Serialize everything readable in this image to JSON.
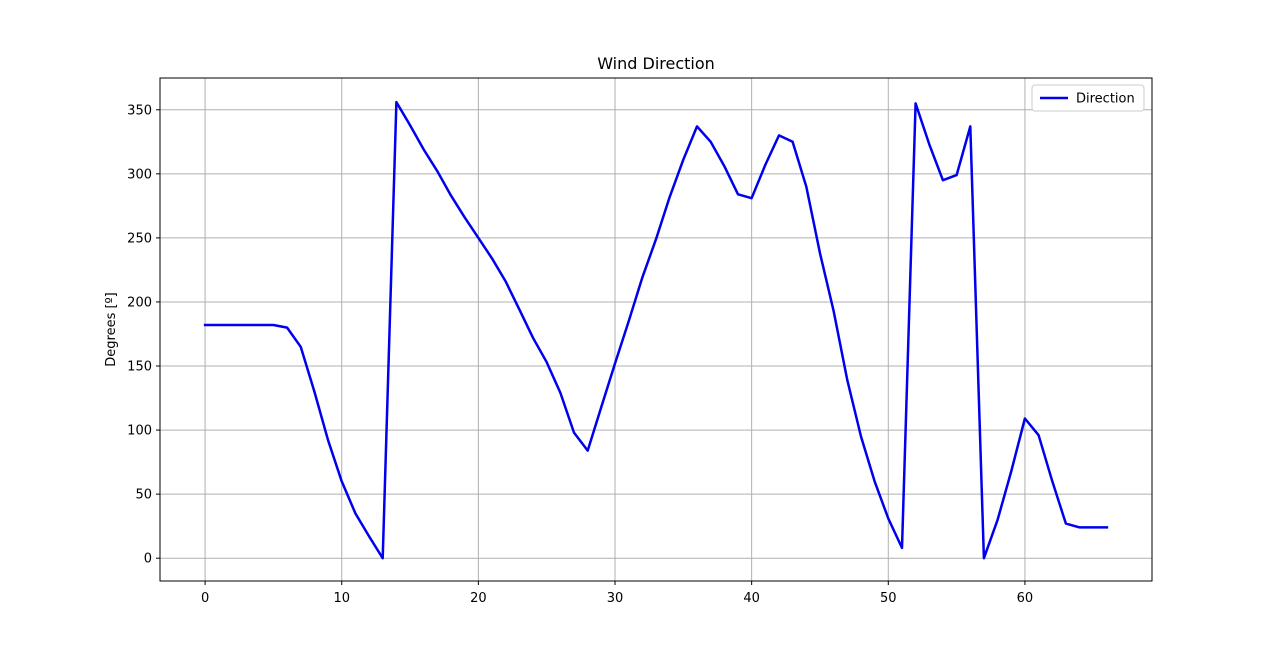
{
  "chart_data": {
    "type": "line",
    "title": "Wind Direction",
    "xlabel": "",
    "ylabel": "Degrees [º]",
    "xlim": [
      -3.3,
      69.3
    ],
    "ylim": [
      -17.8,
      374.8
    ],
    "xticks": [
      0,
      10,
      20,
      30,
      40,
      50,
      60
    ],
    "yticks": [
      0,
      50,
      100,
      150,
      200,
      250,
      300,
      350
    ],
    "grid": true,
    "legend_position": "top-right",
    "series": [
      {
        "name": "Direction",
        "color": "#0000ee",
        "x": [
          0,
          1,
          2,
          3,
          4,
          5,
          6,
          7,
          8,
          9,
          10,
          11,
          12,
          13,
          14,
          15,
          16,
          17,
          18,
          19,
          20,
          21,
          22,
          23,
          24,
          25,
          26,
          27,
          28,
          29,
          30,
          31,
          32,
          33,
          34,
          35,
          36,
          37,
          38,
          39,
          40,
          41,
          42,
          43,
          44,
          45,
          46,
          47,
          48,
          49,
          50,
          51,
          52,
          53,
          54,
          55,
          56,
          57,
          58,
          59,
          60,
          61,
          62,
          63,
          64,
          65,
          66
        ],
        "values": [
          182,
          182,
          182,
          182,
          182,
          182,
          180,
          165,
          130,
          92,
          60,
          35,
          17,
          0,
          356,
          338,
          319,
          302,
          283,
          266,
          250,
          234,
          216,
          194,
          172,
          153,
          129,
          98,
          84,
          118,
          152,
          185,
          219,
          249,
          282,
          311,
          337,
          325,
          306,
          284,
          281,
          307,
          330,
          325,
          290,
          238,
          193,
          139,
          95,
          60,
          31,
          8,
          355,
          323,
          295,
          299,
          337,
          0,
          30,
          68,
          109,
          96,
          60,
          27,
          24,
          24,
          24
        ]
      }
    ]
  }
}
